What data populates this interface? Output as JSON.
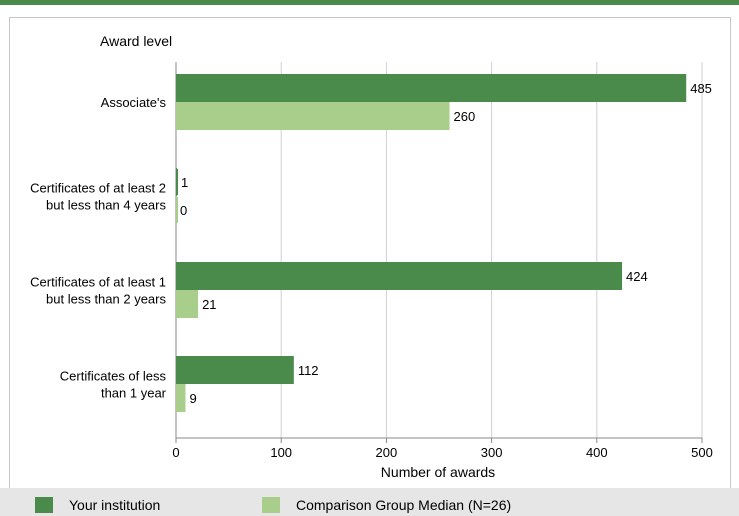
{
  "colors": {
    "accent": "#4a8a4a",
    "institution": "#4a8a4a",
    "comparison": "#a9cd8a",
    "grid": "#d0d0d0",
    "legend_bg": "#e6e6e6"
  },
  "chart_data": {
    "type": "bar",
    "orientation": "horizontal",
    "ylabel": "Award level",
    "xlabel": "Number of awards",
    "xlim": [
      0,
      500
    ],
    "xticks": [
      0,
      100,
      200,
      300,
      400,
      500
    ],
    "grid": "vertical",
    "categories": [
      [
        "Associate's"
      ],
      [
        "Certificates of at least 2",
        "but less than 4 years"
      ],
      [
        "Certificates of at least 1",
        "but  less than 2 years"
      ],
      [
        "Certificates of less",
        "than 1 year"
      ]
    ],
    "series": [
      {
        "name": "Your institution",
        "values": [
          485,
          1,
          424,
          112
        ]
      },
      {
        "name": "Comparison Group Median (N=26)",
        "values": [
          260,
          0,
          21,
          9
        ]
      }
    ],
    "legend_position": "bottom"
  }
}
